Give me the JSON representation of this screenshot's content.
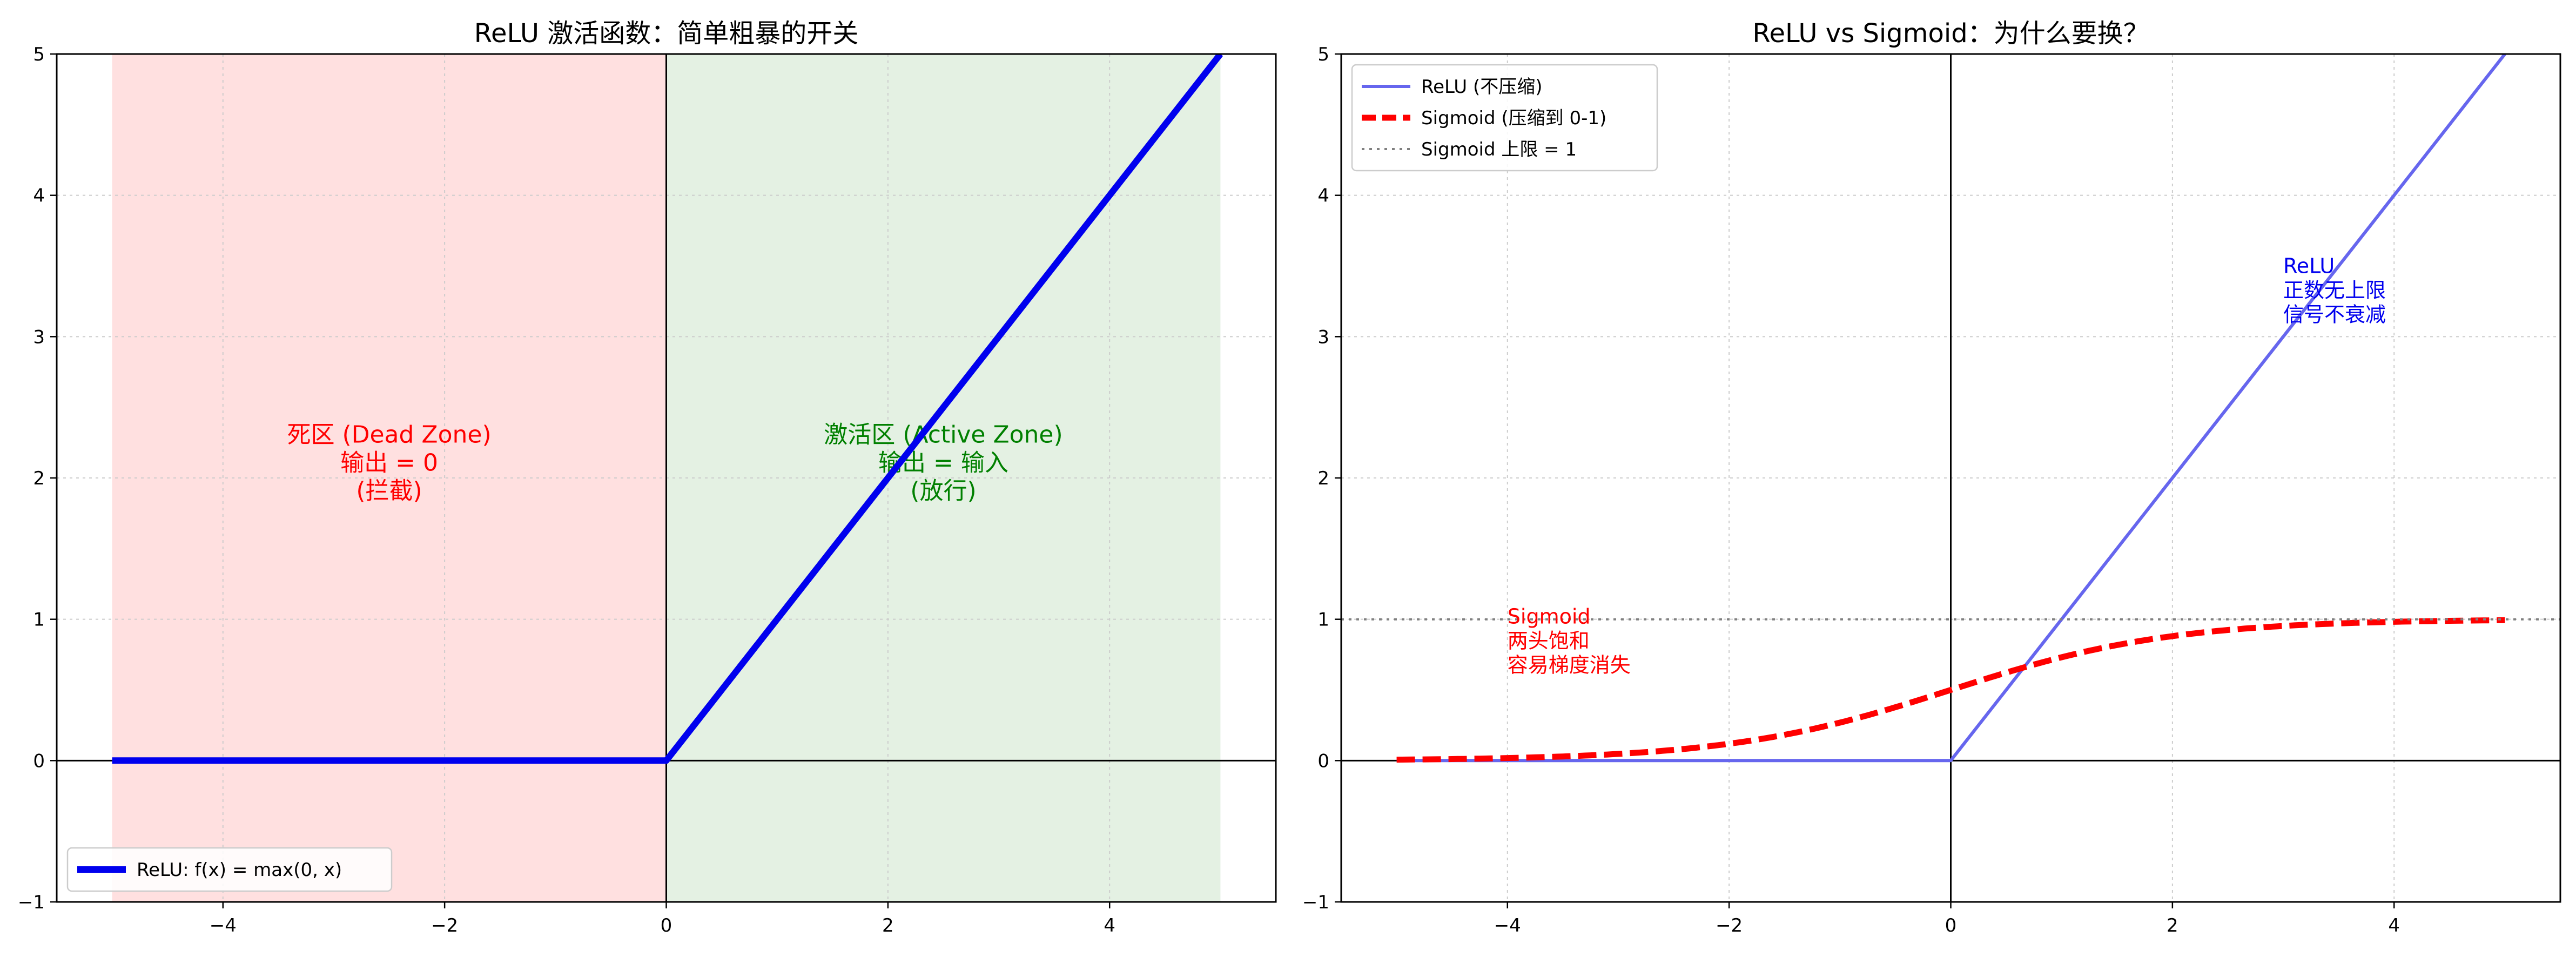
{
  "chart_data": [
    {
      "type": "line",
      "title": "ReLU 激活函数：简单粗暴的开关",
      "xlabel": "",
      "ylabel": "",
      "xlim": [
        -5.5,
        5.5
      ],
      "ylim": [
        -1,
        5
      ],
      "xticks": [
        "−4",
        "−2",
        "0",
        "2",
        "4"
      ],
      "xtick_values": [
        -4,
        -2,
        0,
        2,
        4
      ],
      "yticks": [
        "−1",
        "0",
        "1",
        "2",
        "3",
        "4",
        "5"
      ],
      "ytick_values": [
        -1,
        0,
        1,
        2,
        3,
        4,
        5
      ],
      "grid": true,
      "legend_position": "lower-left",
      "series": [
        {
          "name": "ReLU: f(x) = max(0, x)",
          "x": [
            -5,
            0,
            5
          ],
          "y": [
            0,
            0,
            5
          ],
          "color": "#0000ee",
          "style": "solid"
        }
      ],
      "regions": [
        {
          "x_range": [
            -5,
            0
          ],
          "color": "#ff0000",
          "label": [
            "死区 (Dead Zone)",
            "输出 = 0",
            "(拦截)"
          ],
          "label_color": "#ff0000",
          "label_at": [
            -2.5,
            2.25
          ]
        },
        {
          "x_range": [
            0,
            5
          ],
          "color": "#008000",
          "label": [
            "激活区 (Active Zone)",
            "输出 = 输入",
            "(放行)"
          ],
          "label_color": "#008000",
          "label_at": [
            2.5,
            2.25
          ]
        }
      ]
    },
    {
      "type": "line",
      "title": "ReLU vs Sigmoid：为什么要换？",
      "xlabel": "",
      "ylabel": "",
      "xlim": [
        -5.5,
        5.5
      ],
      "ylim": [
        -1,
        5
      ],
      "xticks": [
        "−4",
        "−2",
        "0",
        "2",
        "4"
      ],
      "xtick_values": [
        -4,
        -2,
        0,
        2,
        4
      ],
      "yticks": [
        "−1",
        "0",
        "1",
        "2",
        "3",
        "4",
        "5"
      ],
      "ytick_values": [
        -1,
        0,
        1,
        2,
        3,
        4,
        5
      ],
      "grid": true,
      "legend_position": "upper-left",
      "series": [
        {
          "name": "ReLU (不压缩)",
          "function": "relu",
          "x_range": [
            -5,
            5
          ],
          "color": "#6666ee",
          "style": "solid"
        },
        {
          "name": "Sigmoid (压缩到 0-1)",
          "function": "sigmoid",
          "x_range": [
            -5,
            5
          ],
          "color": "#ff0000",
          "style": "dashed"
        },
        {
          "name": "Sigmoid 上限 = 1",
          "function": "hline",
          "y": 1,
          "x_range": [
            -5.5,
            5.5
          ],
          "color": "#808080",
          "style": "dotted"
        }
      ],
      "annotations": [
        {
          "lines": [
            "ReLU",
            "正数无上限",
            "信号不衰减"
          ],
          "at": [
            3,
            3.45
          ],
          "color": "#0000ee"
        },
        {
          "lines": [
            "Sigmoid",
            "两头饱和",
            "容易梯度消失"
          ],
          "at": [
            -4,
            0.97
          ],
          "color": "#ff0000"
        }
      ]
    }
  ]
}
